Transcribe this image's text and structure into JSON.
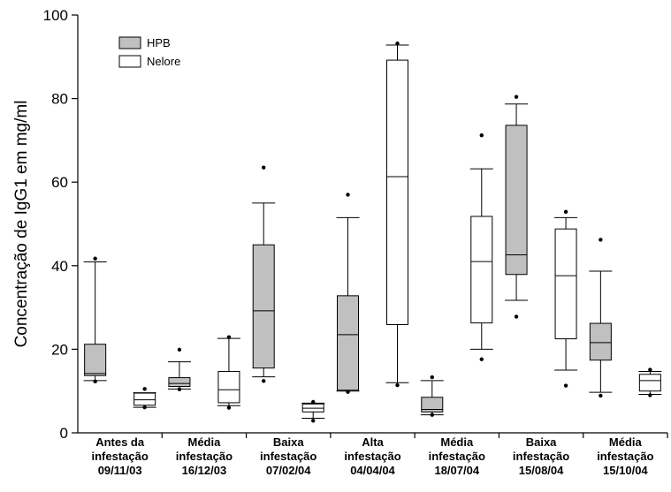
{
  "chart_data": {
    "type": "boxplot",
    "ylabel": "Concentração de IgG1 em mg/ml",
    "ylim": [
      0,
      100
    ],
    "yticks": [
      0,
      20,
      40,
      60,
      80,
      100
    ],
    "grid": false,
    "legend_position": "top-left",
    "categories": [
      [
        "Antes da",
        "infestação",
        "09/11/03"
      ],
      [
        "Média",
        "infestação",
        "16/12/03"
      ],
      [
        "Baixa",
        "infestação",
        "07/02/04"
      ],
      [
        "Alta",
        "infestação",
        "04/04/04"
      ],
      [
        "Média",
        "infestação",
        "18/07/04"
      ],
      [
        "Baixa",
        "infestação",
        "15/08/04"
      ],
      [
        "Média",
        "infestação",
        "15/10/04"
      ]
    ],
    "series": [
      {
        "name": "HPB",
        "color": "#c0c0c0",
        "boxes": [
          {
            "min": 12.5,
            "q1": 13.7,
            "median": 14.2,
            "q3": 21.2,
            "max": 40.9,
            "outliers": [
              41.7,
              12.3
            ]
          },
          {
            "min": 10.5,
            "q1": 11.1,
            "median": 11.8,
            "q3": 13.2,
            "max": 17.0,
            "outliers": [
              19.9,
              10.4
            ]
          },
          {
            "min": 13.4,
            "q1": 15.5,
            "median": 29.2,
            "q3": 45.0,
            "max": 55.0,
            "outliers": [
              63.5,
              12.4
            ]
          },
          {
            "min": 10.0,
            "q1": 10.2,
            "median": 23.5,
            "q3": 32.8,
            "max": 51.5,
            "outliers": [
              57.0,
              9.8
            ]
          },
          {
            "min": 4.3,
            "q1": 5.0,
            "median": 5.6,
            "q3": 8.5,
            "max": 12.5,
            "outliers": [
              13.3,
              4.3
            ]
          },
          {
            "min": 31.7,
            "q1": 37.9,
            "median": 42.6,
            "q3": 73.6,
            "max": 78.7,
            "outliers": [
              80.4,
              27.8
            ]
          },
          {
            "min": 9.7,
            "q1": 17.4,
            "median": 21.6,
            "q3": 26.2,
            "max": 38.7,
            "outliers": [
              46.2,
              8.9
            ]
          }
        ]
      },
      {
        "name": "Nelore",
        "color": "#ffffff",
        "boxes": [
          {
            "min": 6.1,
            "q1": 6.6,
            "median": 7.9,
            "q3": 9.5,
            "max": 9.6,
            "outliers": [
              10.5,
              6.1
            ]
          },
          {
            "min": 6.5,
            "q1": 7.2,
            "median": 10.3,
            "q3": 14.7,
            "max": 22.6,
            "outliers": [
              22.9,
              6.0
            ]
          },
          {
            "min": 3.5,
            "q1": 5.0,
            "median": 5.9,
            "q3": 6.9,
            "max": 7.1,
            "outliers": [
              7.4,
              2.9
            ]
          },
          {
            "min": 12.0,
            "q1": 25.9,
            "median": 61.3,
            "q3": 89.2,
            "max": 92.8,
            "outliers": [
              93.2,
              11.4
            ]
          },
          {
            "min": 20.0,
            "q1": 26.3,
            "median": 41.0,
            "q3": 51.8,
            "max": 63.2,
            "outliers": [
              71.2,
              17.6
            ]
          },
          {
            "min": 15.0,
            "q1": 22.5,
            "median": 37.6,
            "q3": 48.8,
            "max": 51.5,
            "outliers": [
              52.9,
              11.3
            ]
          },
          {
            "min": 9.2,
            "q1": 10.0,
            "median": 12.5,
            "q3": 14.0,
            "max": 14.7,
            "outliers": [
              15.1,
              9.0
            ]
          }
        ]
      }
    ]
  }
}
